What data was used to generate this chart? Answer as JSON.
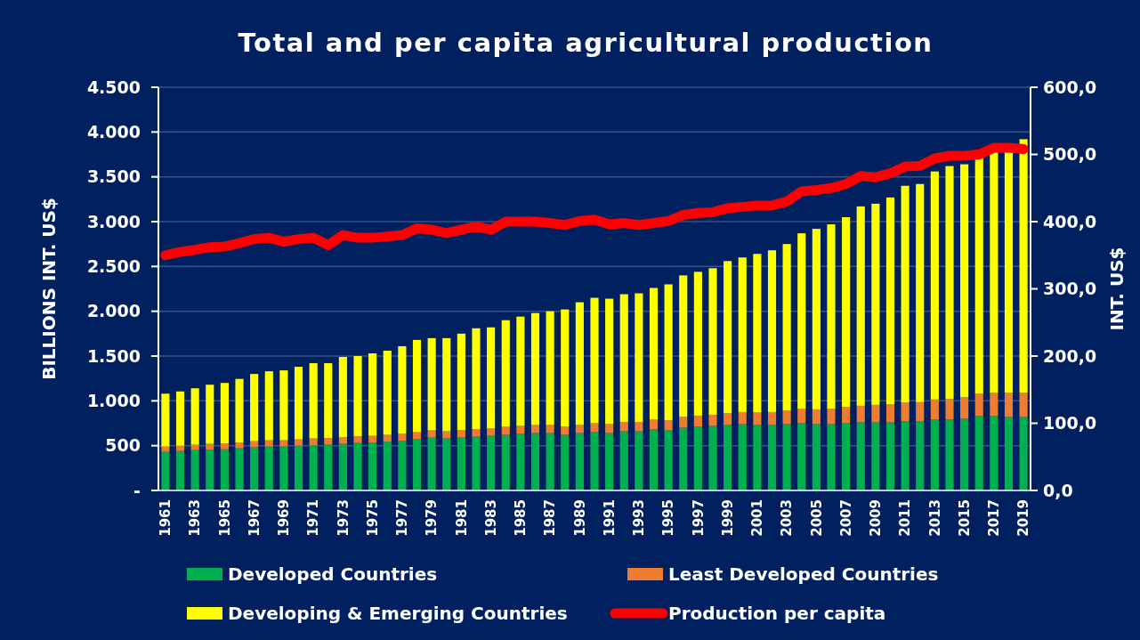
{
  "chart_data": {
    "type": "bar",
    "title": "Total and per capita agricultural production",
    "ylabel": "BILLIONS INT. US$",
    "y2label": "INT. US$",
    "stacked": true,
    "legend": "bottom",
    "grid": "y",
    "categories": [
      "1961",
      null,
      "1963",
      null,
      "1965",
      null,
      "1967",
      null,
      "1969",
      null,
      "1971",
      null,
      "1973",
      null,
      "1975",
      null,
      "1977",
      null,
      "1979",
      null,
      "1981",
      null,
      "1983",
      null,
      "1985",
      null,
      "1987",
      null,
      "1989",
      null,
      "1991",
      null,
      "1993",
      null,
      "1995",
      null,
      "1997",
      null,
      "1999",
      null,
      "2001",
      null,
      "2003",
      null,
      "2005",
      null,
      "2007",
      null,
      "2009",
      null,
      "2011",
      null,
      "2013",
      null,
      "2015",
      null,
      "2017",
      null,
      "2019"
    ],
    "ylim": [
      0,
      4500
    ],
    "yticks": [
      {
        "value": 0,
        "label": "-"
      },
      {
        "value": 500,
        "label": "500"
      },
      {
        "value": 1000,
        "label": "1.000"
      },
      {
        "value": 1500,
        "label": "1.500"
      },
      {
        "value": 2000,
        "label": "2.000"
      },
      {
        "value": 2500,
        "label": "2.500"
      },
      {
        "value": 3000,
        "label": "3.000"
      },
      {
        "value": 3500,
        "label": "3.500"
      },
      {
        "value": 4000,
        "label": "4.000"
      },
      {
        "value": 4500,
        "label": "4.500"
      }
    ],
    "y2lim": [
      0,
      600
    ],
    "y2ticks": [
      {
        "value": 0,
        "label": "0,0"
      },
      {
        "value": 100,
        "label": "100,0"
      },
      {
        "value": 200,
        "label": "200,0"
      },
      {
        "value": 300,
        "label": "300,0"
      },
      {
        "value": 400,
        "label": "400,0"
      },
      {
        "value": 500,
        "label": "500,0"
      },
      {
        "value": 600,
        "label": "600,0"
      }
    ],
    "series": [
      {
        "name": "Developed Countries",
        "color": "#00b050",
        "values": [
          430,
          440,
          450,
          455,
          460,
          470,
          480,
          490,
          490,
          500,
          505,
          510,
          520,
          530,
          535,
          545,
          555,
          570,
          590,
          580,
          590,
          600,
          610,
          620,
          630,
          640,
          640,
          620,
          640,
          650,
          640,
          660,
          660,
          680,
          670,
          700,
          710,
          720,
          730,
          740,
          730,
          730,
          740,
          750,
          740,
          740,
          750,
          760,
          760,
          760,
          770,
          770,
          790,
          790,
          800,
          830,
          830,
          820,
          820
        ]
      },
      {
        "name": "Least Developed Countries",
        "color": "#ed7d31",
        "values": [
          60,
          60,
          60,
          65,
          65,
          65,
          70,
          70,
          70,
          70,
          75,
          75,
          75,
          75,
          75,
          75,
          80,
          80,
          80,
          80,
          85,
          85,
          85,
          90,
          90,
          90,
          90,
          95,
          95,
          100,
          100,
          105,
          105,
          110,
          115,
          120,
          125,
          125,
          130,
          135,
          140,
          145,
          150,
          160,
          165,
          170,
          180,
          185,
          195,
          200,
          210,
          215,
          225,
          230,
          240,
          250,
          260,
          270,
          270
        ]
      },
      {
        "name": "Developing & Emerging Countries",
        "color": "#ffff00",
        "values": [
          590,
          605,
          630,
          660,
          675,
          710,
          750,
          770,
          780,
          810,
          840,
          835,
          895,
          895,
          920,
          940,
          975,
          1030,
          1030,
          1040,
          1075,
          1125,
          1125,
          1190,
          1220,
          1250,
          1270,
          1305,
          1365,
          1400,
          1400,
          1425,
          1435,
          1470,
          1515,
          1580,
          1605,
          1635,
          1700,
          1725,
          1770,
          1805,
          1860,
          1960,
          2015,
          2060,
          2120,
          2225,
          2245,
          2310,
          2420,
          2435,
          2545,
          2600,
          2600,
          2630,
          2690,
          2690,
          2830
        ]
      },
      {
        "name": "Production per capita",
        "type": "line",
        "axis": "y2",
        "color": "#ff0000",
        "marker": "none",
        "line_style": "solid",
        "values": [
          350,
          355,
          358,
          362,
          363,
          368,
          374,
          376,
          370,
          374,
          376,
          365,
          380,
          376,
          376,
          378,
          380,
          390,
          388,
          383,
          388,
          393,
          388,
          400,
          400,
          400,
          398,
          395,
          401,
          403,
          396,
          398,
          395,
          398,
          401,
          410,
          413,
          414,
          420,
          422,
          424,
          424,
          430,
          445,
          447,
          450,
          456,
          468,
          466,
          472,
          482,
          483,
          494,
          498,
          498,
          500,
          510,
          510,
          508
        ]
      }
    ]
  }
}
